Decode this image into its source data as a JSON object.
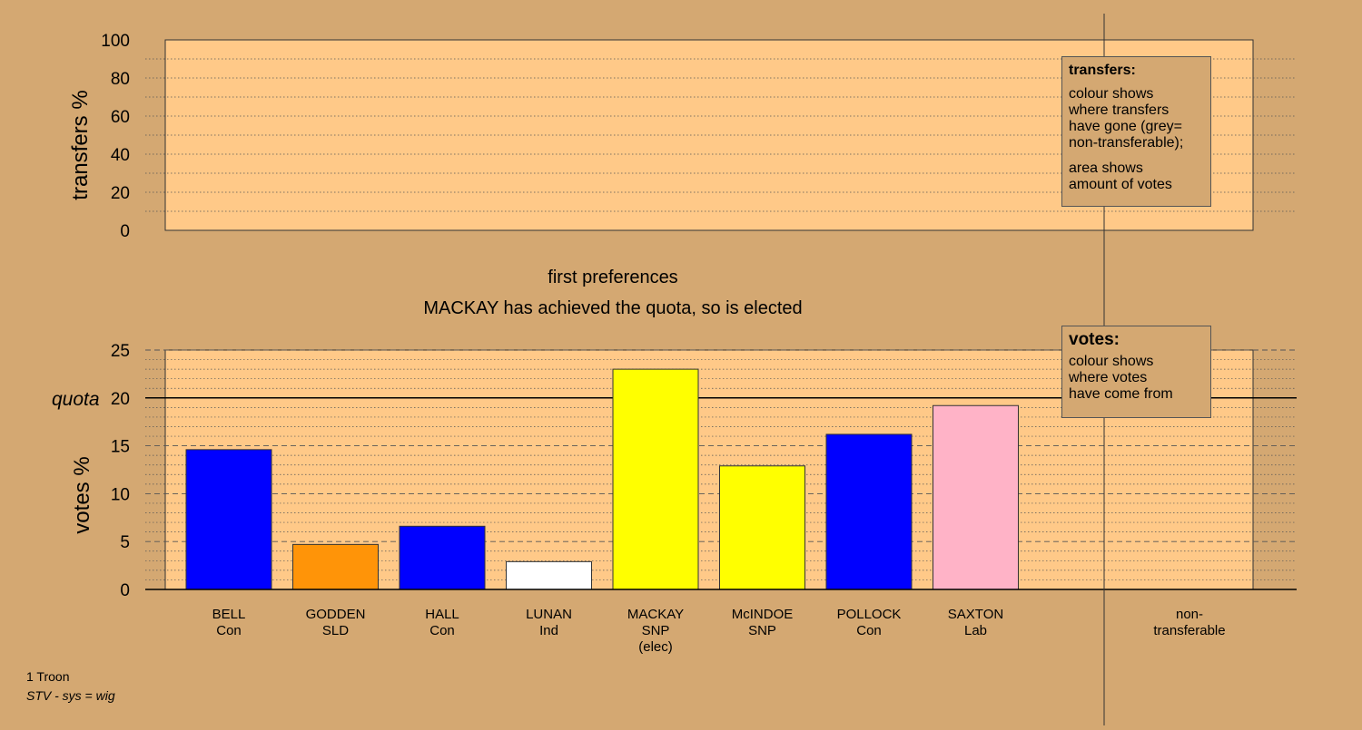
{
  "colors": {
    "background": "#d4a872",
    "panel": "#ffc988",
    "Con": "#0000ff",
    "SLD": "#ff9408",
    "Ind": "#ffffff",
    "SNP": "#ffff00",
    "Lab": "#ffb3c7"
  },
  "chart_data": [
    {
      "type": "bar",
      "ylabel": "transfers %",
      "ylim": [
        0,
        100
      ],
      "yticks": [
        0,
        20,
        40,
        60,
        80,
        100
      ],
      "values": [],
      "grid": true
    },
    {
      "type": "bar",
      "title": "first preferences",
      "subtitle": "MACKAY has achieved the quota, so is elected",
      "ylabel": "votes %",
      "ylim": [
        0,
        25
      ],
      "yticks": [
        0,
        5,
        10,
        15,
        20,
        25
      ],
      "quota_label": "quota",
      "quota": 20,
      "grid": true,
      "categories": [
        {
          "name": "BELL",
          "party": "Con",
          "note": ""
        },
        {
          "name": "GODDEN",
          "party": "SLD",
          "note": ""
        },
        {
          "name": "HALL",
          "party": "Con",
          "note": ""
        },
        {
          "name": "LUNAN",
          "party": "Ind",
          "note": ""
        },
        {
          "name": "MACKAY",
          "party": "SNP",
          "note": "(elec)"
        },
        {
          "name": "McINDOE",
          "party": "SNP",
          "note": ""
        },
        {
          "name": "POLLOCK",
          "party": "Con",
          "note": ""
        },
        {
          "name": "SAXTON",
          "party": "Lab",
          "note": ""
        }
      ],
      "values": [
        14.6,
        4.7,
        6.6,
        2.9,
        23.0,
        12.9,
        16.2,
        19.2
      ],
      "extra_category": {
        "line1": "non-",
        "line2": "transferable"
      }
    }
  ],
  "legend_transfers": {
    "title": "transfers:",
    "para1": "colour shows\nwhere transfers\nhave gone (grey=\nnon-transferable);",
    "para2": "area shows\namount of votes"
  },
  "legend_votes": {
    "title": "votes:",
    "para1": "colour shows\nwhere votes\nhave come from"
  },
  "footer": {
    "line1": "1 Troon",
    "line2": "STV - sys = wig"
  }
}
